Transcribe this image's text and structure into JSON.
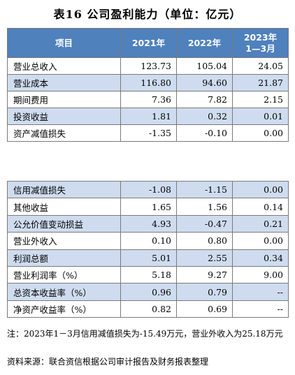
{
  "title": "表16 公司盈利能力（单位：亿元）",
  "header": {
    "item": "项目",
    "y2021": "2021年",
    "y2022": "2022年",
    "y2023_line1": "2023年",
    "y2023_line2": "1—3月"
  },
  "table1_rows": [
    {
      "label": "营业总收入",
      "v2021": "123.73",
      "v2022": "105.04",
      "v2023": "24.05"
    },
    {
      "label": "营业成本",
      "v2021": "116.80",
      "v2022": "94.60",
      "v2023": "21.87"
    },
    {
      "label": "期间费用",
      "v2021": "7.36",
      "v2022": "7.82",
      "v2023": "2.15"
    },
    {
      "label": "投资收益",
      "v2021": "1.81",
      "v2022": "0.32",
      "v2023": "0.01"
    },
    {
      "label": "资产减值损失",
      "v2021": "-1.35",
      "v2022": "-0.10",
      "v2023": "0.00"
    }
  ],
  "table2_rows": [
    {
      "label": "信用减值损失",
      "v2021": "-1.08",
      "v2022": "-1.15",
      "v2023": "0.00"
    },
    {
      "label": "其他收益",
      "v2021": "1.65",
      "v2022": "1.56",
      "v2023": "0.14"
    },
    {
      "label": "公允价值变动损益",
      "v2021": "4.93",
      "v2022": "-0.47",
      "v2023": "0.21"
    },
    {
      "label": "营业外收入",
      "v2021": "0.10",
      "v2022": "0.80",
      "v2023": "0.00"
    },
    {
      "label": "利润总额",
      "v2021": "5.01",
      "v2022": "2.55",
      "v2023": "0.34"
    },
    {
      "label": "营业利润率（%）",
      "v2021": "5.18",
      "v2022": "9.27",
      "v2023": "9.00"
    },
    {
      "label": "总资本收益率（%）",
      "v2021": "0.96",
      "v2022": "0.79",
      "v2023": "--"
    },
    {
      "label": "净资产收益率（%）",
      "v2021": "0.82",
      "v2022": "0.69",
      "v2023": "--"
    }
  ],
  "note": "注：2023年1－3月信用减值损失为-15.49万元，营业外收入为25.18万元",
  "source": "资料来源：联合资信根据公司审计报告及财务报表整理",
  "colors": {
    "header_bg": "#4f81bd",
    "header_text": "#ffffff",
    "shade_row": "#cfdcef",
    "border": "#7a7a7a"
  }
}
